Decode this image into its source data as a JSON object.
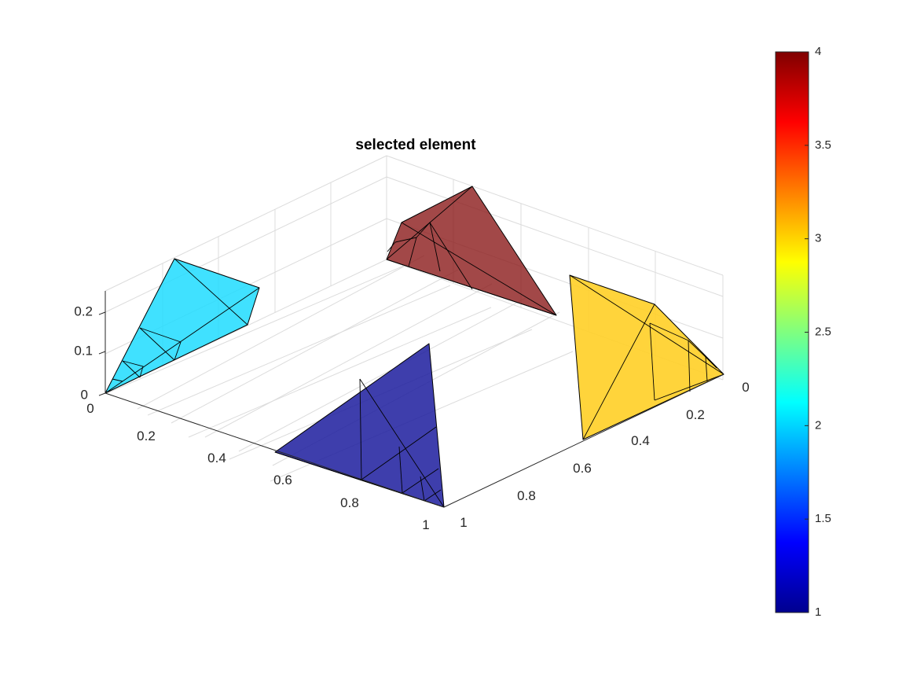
{
  "chart_data": {
    "type": "3d-surface-patches",
    "title": "selected element",
    "x_ticks": [
      "0",
      "0.2",
      "0.4",
      "0.6",
      "0.8",
      "1"
    ],
    "y_ticks": [
      "0",
      "0.2",
      "0.4",
      "0.6",
      "0.8",
      "1"
    ],
    "z_ticks": [
      "0",
      "0.1",
      "0.2"
    ],
    "xlim": [
      0,
      1
    ],
    "ylim": [
      0,
      1
    ],
    "zlim": [
      0,
      0.25
    ],
    "grid": true,
    "colormap": "jet",
    "colorbar": {
      "location": "right",
      "range": [
        1,
        4
      ],
      "ticks": [
        "1",
        "1.5",
        "2",
        "2.5",
        "3",
        "3.5",
        "4"
      ]
    },
    "elements": [
      {
        "value": 2,
        "color": "#1fdcff",
        "corner": "x=0,y=1"
      },
      {
        "value": 4,
        "color": "#8b1a1a",
        "corner": "x=0,y=0"
      },
      {
        "value": 1,
        "color": "#1c1c9e",
        "corner": "x=1,y=1"
      },
      {
        "value": 3,
        "color": "#ffcf26",
        "corner": "x=1,y=0"
      }
    ]
  }
}
